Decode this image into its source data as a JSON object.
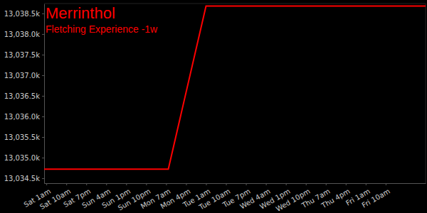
{
  "chart_data": {
    "type": "line",
    "title": "Merrinthol",
    "subtitle": "Fletching Experience -1w",
    "x": [
      -1,
      55,
      72,
      171
    ],
    "values": [
      13034720,
      13034720,
      13038680,
      13038680
    ],
    "color": "#ff0000",
    "xlim": [
      -1,
      171
    ],
    "xticks": [
      {
        "value": 0,
        "label": "Sat 1am"
      },
      {
        "value": 9,
        "label": "Sat 10am"
      },
      {
        "value": 18,
        "label": "Sat 7pm"
      },
      {
        "value": 27,
        "label": "Sun 4am"
      },
      {
        "value": 36,
        "label": "Sun 1pm"
      },
      {
        "value": 45,
        "label": "Sun 10pm"
      },
      {
        "value": 54,
        "label": "Mon 7am"
      },
      {
        "value": 63,
        "label": "Mon 4pm"
      },
      {
        "value": 72,
        "label": "Tue 1am"
      },
      {
        "value": 81,
        "label": "Tue 10am"
      },
      {
        "value": 90,
        "label": "Tue 7pm"
      },
      {
        "value": 99,
        "label": "Wed 4am"
      },
      {
        "value": 108,
        "label": "Wed 1pm"
      },
      {
        "value": 117,
        "label": "Wed 10pm"
      },
      {
        "value": 126,
        "label": "Thu 7am"
      },
      {
        "value": 135,
        "label": "Thu 4pm"
      },
      {
        "value": 144,
        "label": "Fri 1am"
      },
      {
        "value": 153,
        "label": "Fri 10am"
      }
    ],
    "ylim": [
      13034380,
      13038740
    ],
    "yticks": [
      {
        "value": 13034500,
        "label": "13,034.5k"
      },
      {
        "value": 13035000,
        "label": "13,035.0k"
      },
      {
        "value": 13035500,
        "label": "13,035.5k"
      },
      {
        "value": 13036000,
        "label": "13,036.0k"
      },
      {
        "value": 13036500,
        "label": "13,036.5k"
      },
      {
        "value": 13037000,
        "label": "13,037.0k"
      },
      {
        "value": 13037500,
        "label": "13,037.5k"
      },
      {
        "value": 13038000,
        "label": "13,038.0k"
      },
      {
        "value": 13038500,
        "label": "13,038.5k"
      }
    ],
    "grid": false
  }
}
